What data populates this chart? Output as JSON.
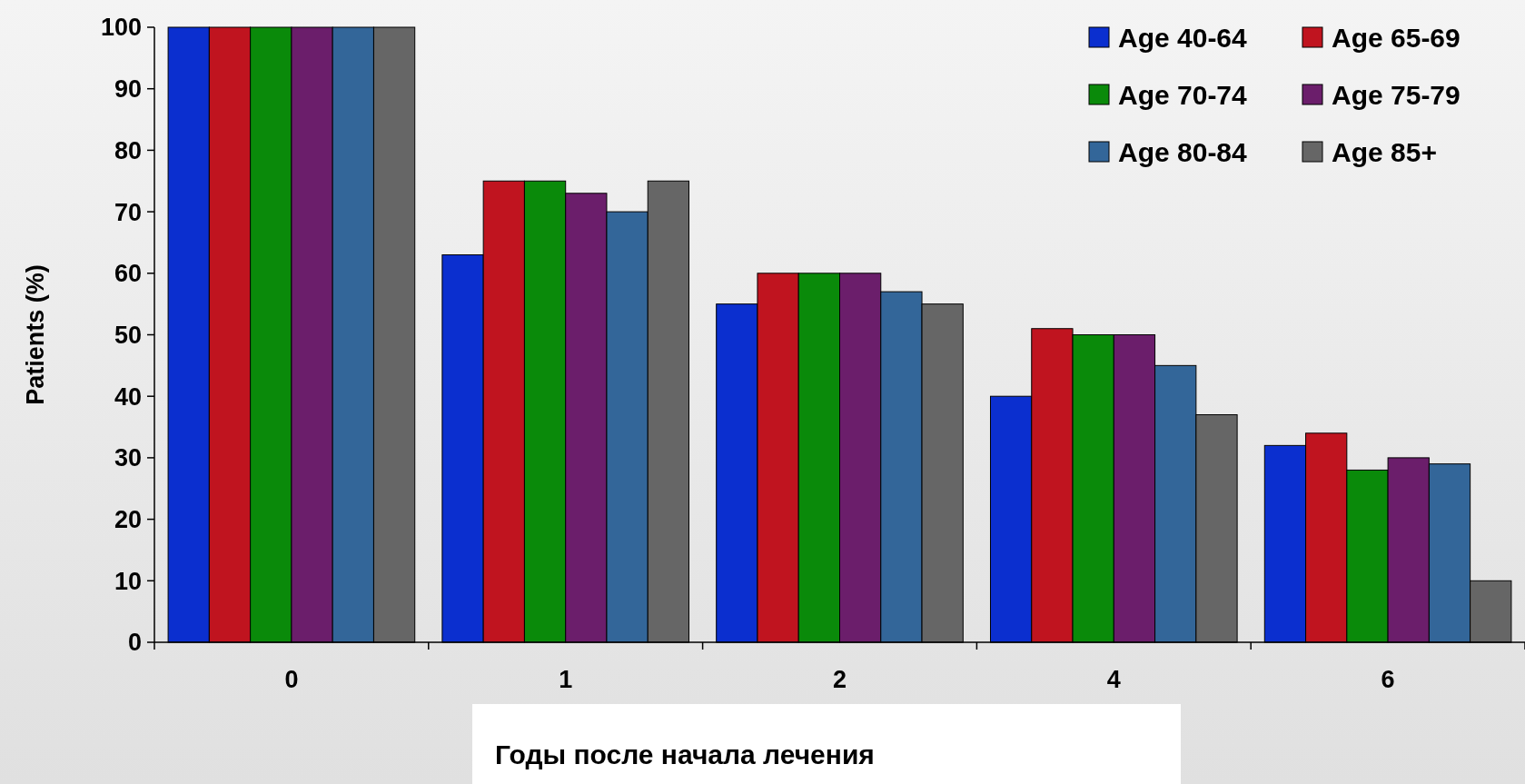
{
  "chart_data": {
    "type": "bar",
    "xlabel": "Годы после начала лечения",
    "ylabel": "Patients (%)",
    "categories": [
      "0",
      "1",
      "2",
      "4",
      "6"
    ],
    "series": [
      {
        "name": "Age 40-64",
        "color": "#0b2fcf",
        "values": [
          100,
          63,
          55,
          40,
          32
        ]
      },
      {
        "name": "Age 65-69",
        "color": "#c0141f",
        "values": [
          100,
          75,
          60,
          51,
          34
        ]
      },
      {
        "name": "Age 70-74",
        "color": "#0a8a0a",
        "values": [
          100,
          75,
          60,
          50,
          28
        ]
      },
      {
        "name": "Age 75-79",
        "color": "#6b1e6b",
        "values": [
          100,
          73,
          60,
          50,
          30
        ]
      },
      {
        "name": "Age 80-84",
        "color": "#336699",
        "values": [
          100,
          70,
          57,
          45,
          29
        ]
      },
      {
        "name": "Age 85+",
        "color": "#666666",
        "values": [
          100,
          75,
          55,
          37,
          10
        ]
      }
    ],
    "ylim": [
      0,
      100
    ],
    "yticks": [
      0,
      10,
      20,
      30,
      40,
      50,
      60,
      70,
      80,
      90,
      100
    ],
    "grid": false,
    "legend": "top right"
  }
}
